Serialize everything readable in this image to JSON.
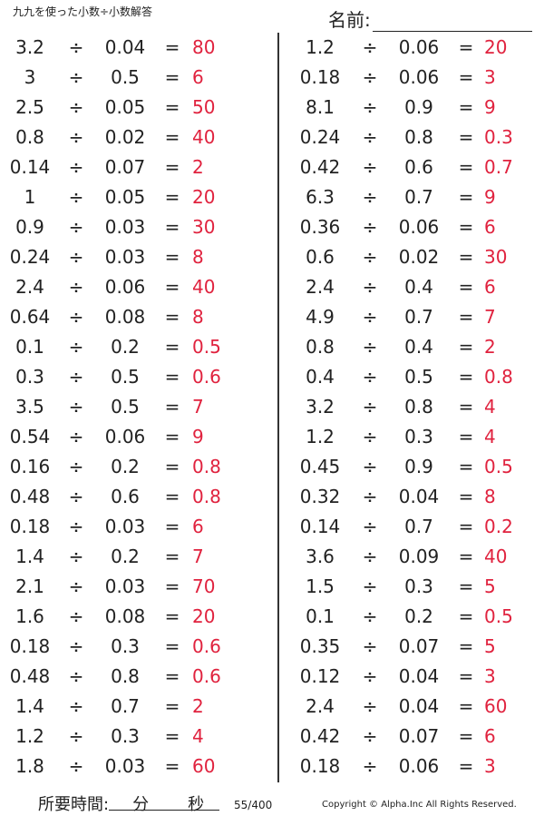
{
  "header": {
    "title": "九九を使った小数÷小数解答",
    "name_label": "名前:"
  },
  "operator": "÷",
  "equals": "=",
  "left_problems": [
    {
      "a": "3.2",
      "b": "0.04",
      "ans": "80"
    },
    {
      "a": "3",
      "b": "0.5",
      "ans": "6"
    },
    {
      "a": "2.5",
      "b": "0.05",
      "ans": "50"
    },
    {
      "a": "0.8",
      "b": "0.02",
      "ans": "40"
    },
    {
      "a": "0.14",
      "b": "0.07",
      "ans": "2"
    },
    {
      "a": "1",
      "b": "0.05",
      "ans": "20"
    },
    {
      "a": "0.9",
      "b": "0.03",
      "ans": "30"
    },
    {
      "a": "0.24",
      "b": "0.03",
      "ans": "8"
    },
    {
      "a": "2.4",
      "b": "0.06",
      "ans": "40"
    },
    {
      "a": "0.64",
      "b": "0.08",
      "ans": "8"
    },
    {
      "a": "0.1",
      "b": "0.2",
      "ans": "0.5"
    },
    {
      "a": "0.3",
      "b": "0.5",
      "ans": "0.6"
    },
    {
      "a": "3.5",
      "b": "0.5",
      "ans": "7"
    },
    {
      "a": "0.54",
      "b": "0.06",
      "ans": "9"
    },
    {
      "a": "0.16",
      "b": "0.2",
      "ans": "0.8"
    },
    {
      "a": "0.48",
      "b": "0.6",
      "ans": "0.8"
    },
    {
      "a": "0.18",
      "b": "0.03",
      "ans": "6"
    },
    {
      "a": "1.4",
      "b": "0.2",
      "ans": "7"
    },
    {
      "a": "2.1",
      "b": "0.03",
      "ans": "70"
    },
    {
      "a": "1.6",
      "b": "0.08",
      "ans": "20"
    },
    {
      "a": "0.18",
      "b": "0.3",
      "ans": "0.6"
    },
    {
      "a": "0.48",
      "b": "0.8",
      "ans": "0.6"
    },
    {
      "a": "1.4",
      "b": "0.7",
      "ans": "2"
    },
    {
      "a": "1.2",
      "b": "0.3",
      "ans": "4"
    },
    {
      "a": "1.8",
      "b": "0.03",
      "ans": "60"
    }
  ],
  "right_problems": [
    {
      "a": "1.2",
      "b": "0.06",
      "ans": "20"
    },
    {
      "a": "0.18",
      "b": "0.06",
      "ans": "3"
    },
    {
      "a": "8.1",
      "b": "0.9",
      "ans": "9"
    },
    {
      "a": "0.24",
      "b": "0.8",
      "ans": "0.3"
    },
    {
      "a": "0.42",
      "b": "0.6",
      "ans": "0.7"
    },
    {
      "a": "6.3",
      "b": "0.7",
      "ans": "9"
    },
    {
      "a": "0.36",
      "b": "0.06",
      "ans": "6"
    },
    {
      "a": "0.6",
      "b": "0.02",
      "ans": "30"
    },
    {
      "a": "2.4",
      "b": "0.4",
      "ans": "6"
    },
    {
      "a": "4.9",
      "b": "0.7",
      "ans": "7"
    },
    {
      "a": "0.8",
      "b": "0.4",
      "ans": "2"
    },
    {
      "a": "0.4",
      "b": "0.5",
      "ans": "0.8"
    },
    {
      "a": "3.2",
      "b": "0.8",
      "ans": "4"
    },
    {
      "a": "1.2",
      "b": "0.3",
      "ans": "4"
    },
    {
      "a": "0.45",
      "b": "0.9",
      "ans": "0.5"
    },
    {
      "a": "0.32",
      "b": "0.04",
      "ans": "8"
    },
    {
      "a": "0.14",
      "b": "0.7",
      "ans": "0.2"
    },
    {
      "a": "3.6",
      "b": "0.09",
      "ans": "40"
    },
    {
      "a": "1.5",
      "b": "0.3",
      "ans": "5"
    },
    {
      "a": "0.1",
      "b": "0.2",
      "ans": "0.5"
    },
    {
      "a": "0.35",
      "b": "0.07",
      "ans": "5"
    },
    {
      "a": "0.12",
      "b": "0.04",
      "ans": "3"
    },
    {
      "a": "2.4",
      "b": "0.04",
      "ans": "60"
    },
    {
      "a": "0.42",
      "b": "0.07",
      "ans": "6"
    },
    {
      "a": "0.18",
      "b": "0.06",
      "ans": "3"
    }
  ],
  "footer": {
    "time_label": "所要時間:",
    "minutes_label": "分",
    "seconds_label": "秒",
    "page": "55/400",
    "copyright": "Copyright © Alpha.Inc All Rights Reserved."
  },
  "colors": {
    "answer": "#e0223e",
    "text": "#222222"
  }
}
